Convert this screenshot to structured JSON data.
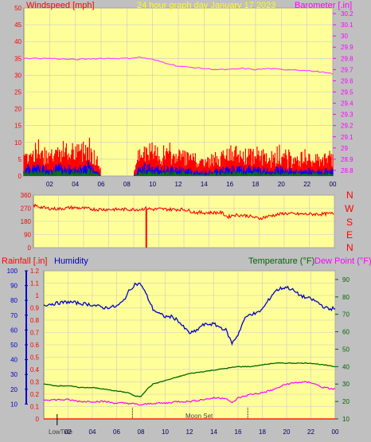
{
  "header": {
    "wind_label": "Windspeed [mph]",
    "title": "24 hour graph day   January 17 2023",
    "baro_label": "Barometer [.in]"
  },
  "direction_labels": [
    "N",
    "W",
    "S",
    "E",
    "N"
  ],
  "bottom_header": {
    "rain_label": "Rainfall [.in]",
    "humidity_label": "Humidity",
    "temp_label": "Temperature (°F)",
    "dew_label": "Dew Point (°F)"
  },
  "annotations": {
    "lowtide": "LowTide",
    "moonset": "Moon Set"
  },
  "colors": {
    "plot_bg": "#ffff99",
    "frame": "#c0c0c0",
    "wind": "#ff0000",
    "gust_blue": "#0000ff",
    "gust_green": "#008000",
    "barometer": "#ff44ff",
    "direction": "#ff0000",
    "humidity": "#0000cc",
    "temperature": "#006600",
    "dewpoint": "#ff00ff",
    "rain": "#ff0000",
    "title": "#ffff00",
    "grid": "#c8c8c8"
  },
  "chart_data": [
    {
      "type": "line",
      "title": "24 hour graph day   January 17 2023",
      "x_ticks": [
        "02",
        "04",
        "06",
        "08",
        "10",
        "12",
        "14",
        "16",
        "18",
        "20",
        "22",
        "00"
      ],
      "y_left": {
        "label": "Windspeed [mph]",
        "ticks": [
          "0",
          "5",
          "10",
          "15",
          "20",
          "25",
          "30",
          "35",
          "40",
          "45",
          "50"
        ],
        "range": [
          0,
          50
        ]
      },
      "y_right": {
        "label": "Barometer [.in]",
        "ticks": [
          "28.8",
          "28.9",
          "29",
          "29.1",
          "29.2",
          "29.3",
          "29.4",
          "29.5",
          "29.6",
          "29.7",
          "29.8",
          "29.9",
          "30",
          "30.1",
          "30.2"
        ],
        "range": [
          28.75,
          30.25
        ]
      },
      "grid": true,
      "series": [
        {
          "name": "Windspeed [mph]",
          "axis": "left",
          "x": [
            0,
            1,
            2,
            3,
            4,
            5,
            5.5,
            6,
            7,
            8,
            8.5,
            9,
            9.5,
            10,
            11,
            12,
            13,
            14,
            15,
            16,
            17,
            18,
            19,
            20,
            21,
            22,
            23,
            24
          ],
          "y": [
            4,
            5,
            4,
            5,
            4,
            6,
            4,
            0,
            0,
            0,
            0,
            4,
            6,
            4,
            4,
            4,
            3,
            2,
            3,
            4,
            4,
            4,
            3,
            4,
            3,
            3,
            3,
            3
          ]
        },
        {
          "name": "Barometer [.in]",
          "axis": "right",
          "x": [
            0,
            2,
            4,
            6,
            8,
            9,
            10,
            11,
            12,
            13,
            14,
            15,
            16,
            17,
            18,
            19,
            20,
            21,
            22,
            23,
            24
          ],
          "y": [
            29.8,
            29.8,
            29.79,
            29.8,
            29.8,
            29.81,
            29.79,
            29.76,
            29.73,
            29.72,
            29.71,
            29.7,
            29.7,
            29.71,
            29.7,
            29.71,
            29.7,
            29.7,
            29.69,
            29.68,
            29.66
          ]
        }
      ]
    },
    {
      "type": "line",
      "y_left": {
        "ticks": [
          "360",
          "270",
          "180",
          "90",
          "0"
        ],
        "range": [
          0,
          360
        ]
      },
      "y_right_labels": [
        "N",
        "W",
        "S",
        "E",
        "N"
      ],
      "grid": true,
      "series": [
        {
          "name": "Wind direction",
          "x": [
            0,
            1,
            2,
            3,
            4,
            5,
            6,
            7,
            8,
            8.5,
            9,
            9.5,
            10,
            11,
            12,
            13,
            14,
            15,
            15.5,
            16,
            17,
            18,
            19,
            20,
            21,
            22,
            23,
            24
          ],
          "y": [
            290,
            270,
            265,
            275,
            270,
            262,
            262,
            262,
            262,
            262,
            270,
            262,
            265,
            262,
            262,
            240,
            240,
            240,
            210,
            225,
            220,
            200,
            220,
            235,
            230,
            230,
            230,
            235
          ]
        }
      ]
    },
    {
      "type": "line",
      "x_ticks": [
        "02",
        "04",
        "06",
        "08",
        "10",
        "12",
        "14",
        "16",
        "18",
        "20",
        "22",
        "00"
      ],
      "y_left_rain": {
        "label": "Rainfall [.in]",
        "ticks": [
          "0",
          "0.1",
          "0.2",
          "0.3",
          "0.4",
          "0.5",
          "0.6",
          "0.7",
          "0.8",
          "0.9",
          "1",
          "1.1",
          "1.2"
        ],
        "range": [
          0,
          1.2
        ]
      },
      "y_left_humidity": {
        "label": "Humidity",
        "ticks": [
          "10",
          "20",
          "30",
          "40",
          "50",
          "60",
          "70",
          "80",
          "90",
          "100"
        ],
        "range": [
          0,
          100
        ]
      },
      "y_right": {
        "label": "Temperature (°F) Dew Point (°F)",
        "ticks": [
          "10",
          "20",
          "30",
          "40",
          "50",
          "60",
          "70",
          "80",
          "90"
        ],
        "range": [
          10,
          95
        ]
      },
      "grid": true,
      "series": [
        {
          "name": "Humidity",
          "axis": "humidity",
          "x": [
            0,
            1,
            2,
            3,
            4,
            5,
            6,
            6.5,
            7,
            7.5,
            8,
            8.5,
            9,
            9.5,
            10,
            10.5,
            11,
            11.5,
            12,
            12.5,
            13,
            13.5,
            14,
            14.5,
            15,
            15.5,
            16,
            16.5,
            17,
            17.5,
            18,
            18.5,
            19,
            19.5,
            20,
            20.5,
            21,
            21.5,
            22,
            22.5,
            23,
            23.5,
            24
          ],
          "y": [
            77,
            78,
            79,
            78,
            77,
            75,
            76,
            79,
            86,
            91,
            91,
            83,
            74,
            71,
            69,
            69,
            67,
            62,
            58,
            59,
            63,
            64,
            64,
            62,
            60,
            51,
            57,
            67,
            71,
            71,
            74,
            80,
            86,
            88,
            89,
            87,
            84,
            82,
            81,
            79,
            76,
            74,
            75
          ]
        },
        {
          "name": "Temperature (°F)",
          "axis": "right",
          "x": [
            0,
            1,
            2,
            3,
            4,
            5,
            6,
            7,
            7.5,
            8,
            8.5,
            9,
            10,
            11,
            12,
            13,
            14,
            15,
            16,
            17,
            18,
            19,
            20,
            21,
            22,
            23,
            24
          ],
          "y": [
            30,
            29,
            29,
            28,
            28,
            27,
            26,
            25,
            23,
            23,
            27,
            30,
            32,
            34,
            36,
            37,
            38,
            39,
            40,
            40,
            41,
            42,
            42,
            42,
            42,
            41,
            40
          ]
        },
        {
          "name": "Dew Point (°F)",
          "axis": "right",
          "x": [
            0,
            1,
            2,
            3,
            4,
            5,
            6,
            7,
            8,
            9,
            10,
            11,
            12,
            13,
            14,
            15,
            15.5,
            16,
            17,
            18,
            19,
            20,
            21,
            22,
            23,
            24
          ],
          "y": [
            21,
            21,
            21,
            20,
            20,
            20,
            19,
            19,
            18,
            19,
            19,
            20,
            20,
            21,
            22,
            22,
            19,
            22,
            24,
            25,
            27,
            30,
            31,
            31,
            28,
            27
          ]
        },
        {
          "name": "Rainfall [.in]",
          "axis": "rain",
          "x": [
            0,
            24
          ],
          "y": [
            0,
            0
          ]
        }
      ]
    }
  ]
}
